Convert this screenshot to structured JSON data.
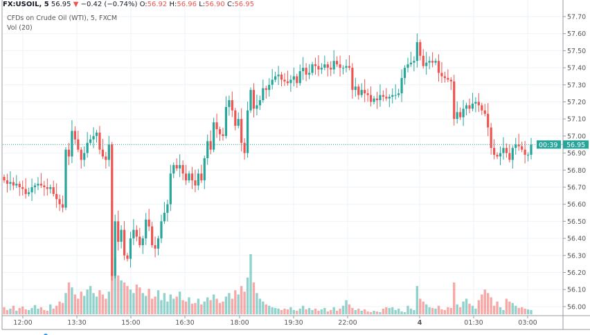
{
  "header": {
    "symbol": "FX:USOIL, 5",
    "last": "56.95",
    "change": "−0.42 (−0.74%)",
    "o_label": "O:",
    "o": "56.92",
    "h_label": "H:",
    "h": "56.96",
    "l_label": "L:",
    "l": "56.90",
    "c_label": "C:",
    "c": "56.95"
  },
  "legend": {
    "title": "CFDs on Crude Oil (WTI), 5, FXCM",
    "vol": "Vol (20)"
  },
  "price_tag": {
    "price": "56.95",
    "countdown": "00:39"
  },
  "colors": {
    "up": "#26a69a",
    "down": "#ef5350",
    "grid": "#eef3f7",
    "axis": "#787b86"
  },
  "chart_data": {
    "type": "candlestick",
    "title": "CFDs on Crude Oil (WTI), 5, FXCM",
    "interval": "5 min",
    "first_open": 56.76,
    "y_ticks": [
      "57.70",
      "57.60",
      "57.50",
      "57.40",
      "57.30",
      "57.20",
      "57.10",
      "57.00",
      "56.90",
      "56.80",
      "56.70",
      "56.60",
      "56.50",
      "56.40",
      "56.30",
      "56.20",
      "56.10",
      "56.00"
    ],
    "ylim": [
      55.97,
      57.76
    ],
    "x_ticks": [
      "12:00",
      "13:30",
      "15:00",
      "16:30",
      "18:00",
      "19:30",
      "22:00",
      "4",
      "01:30",
      "03:00"
    ],
    "closes": [
      56.74,
      56.72,
      56.73,
      56.71,
      56.72,
      56.7,
      56.69,
      56.66,
      56.67,
      56.7,
      56.71,
      56.72,
      56.71,
      56.7,
      56.69,
      56.7,
      56.66,
      56.63,
      56.6,
      56.58,
      56.92,
      56.88,
      57.03,
      56.98,
      56.92,
      56.86,
      56.9,
      56.96,
      56.98,
      57.0,
      57.02,
      56.92,
      56.88,
      56.86,
      56.95,
      56.18,
      56.5,
      56.38,
      56.45,
      56.3,
      56.28,
      56.4,
      56.45,
      56.41,
      56.36,
      56.4,
      56.51,
      56.47,
      56.36,
      56.34,
      56.4,
      56.5,
      56.55,
      56.6,
      56.78,
      56.83,
      56.81,
      56.83,
      56.78,
      56.74,
      56.78,
      56.74,
      56.71,
      56.78,
      56.74,
      56.87,
      56.97,
      56.92,
      57.08,
      57.04,
      57.01,
      57.0,
      57.17,
      57.21,
      57.15,
      57.06,
      57.1,
      56.96,
      56.9,
      57.15,
      57.27,
      57.16,
      57.18,
      57.21,
      57.28,
      57.27,
      57.3,
      57.33,
      57.35,
      57.36,
      57.33,
      57.32,
      57.31,
      57.33,
      57.35,
      57.31,
      57.38,
      57.4,
      57.36,
      57.37,
      57.42,
      57.41,
      57.39,
      57.4,
      57.42,
      57.4,
      57.39,
      57.44,
      57.42,
      57.4,
      57.4,
      57.41,
      57.4,
      57.27,
      57.29,
      57.24,
      57.27,
      57.25,
      57.24,
      57.2,
      57.22,
      57.21,
      57.24,
      57.23,
      57.22,
      57.23,
      57.24,
      57.24,
      57.25,
      57.34,
      57.4,
      57.42,
      57.43,
      57.44,
      57.55,
      57.47,
      57.41,
      57.43,
      57.44,
      57.43,
      57.44,
      57.37,
      57.35,
      57.34,
      57.33,
      57.32,
      57.1,
      57.14,
      57.11,
      57.16,
      57.18,
      57.16,
      57.19,
      57.2,
      57.18,
      57.15,
      57.13,
      57.05,
      56.93,
      56.89,
      56.88,
      56.9,
      56.93,
      56.9,
      56.86,
      56.93,
      56.95,
      56.94,
      56.92,
      56.89,
      56.89,
      56.95
    ],
    "volumes": [
      10,
      6,
      8,
      12,
      5,
      9,
      11,
      7,
      6,
      9,
      13,
      8,
      10,
      6,
      5,
      14,
      8,
      12,
      18,
      16,
      30,
      45,
      38,
      28,
      22,
      32,
      26,
      35,
      40,
      30,
      25,
      34,
      28,
      22,
      32,
      60,
      80,
      55,
      48,
      45,
      40,
      35,
      30,
      42,
      38,
      30,
      26,
      36,
      22,
      25,
      34,
      20,
      30,
      18,
      28,
      22,
      25,
      32,
      20,
      18,
      24,
      15,
      16,
      22,
      14,
      18,
      24,
      20,
      28,
      22,
      16,
      18,
      25,
      30,
      22,
      34,
      28,
      40,
      32,
      52,
      85,
      45,
      30,
      22,
      18,
      14,
      12,
      10,
      9,
      8,
      6,
      8,
      7,
      10,
      6,
      5,
      8,
      12,
      7,
      9,
      6,
      8,
      5,
      7,
      9,
      4,
      6,
      10,
      5,
      8,
      12,
      20,
      14,
      9,
      6,
      8,
      5,
      7,
      4,
      3,
      5,
      4,
      3,
      8,
      10,
      9,
      10,
      6,
      8,
      4,
      3,
      12,
      8,
      6,
      40,
      22,
      18,
      14,
      10,
      9,
      8,
      12,
      7,
      6,
      10,
      9,
      45,
      14,
      10,
      18,
      22,
      15,
      12,
      8,
      20,
      28,
      35,
      30,
      24,
      12,
      18,
      10,
      6,
      22,
      18,
      16,
      12,
      9,
      10,
      8,
      7,
      6
    ],
    "volume_label": "Vol (20)",
    "grid": true
  }
}
